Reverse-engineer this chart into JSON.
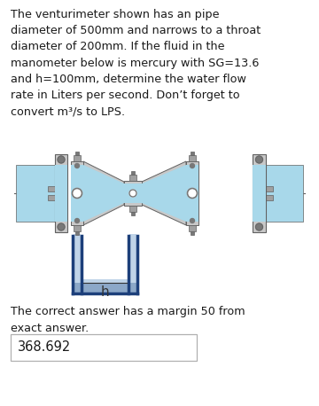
{
  "background_color": "#ffffff",
  "text_color": "#1a1a1a",
  "problem_text": "The venturimeter shown has an pipe\ndiameter of 500mm and narrows to a throat\ndiameter of 200mm. If the fluid in the\nmanometer below is mercury with SG=13.6\nand h=100mm, determine the water flow\nrate in Liters per second. Don’t forget to\nconvert m³/s to LPS.",
  "footer_text": "The correct answer has a margin 50 from\nexact answer.",
  "answer": "368.692",
  "h_label": "h",
  "pipe_fluid": "#a8d8ea",
  "metal_light": "#c8c8c8",
  "metal_mid": "#a0a0a0",
  "metal_dark": "#787878",
  "metal_edge": "#606060",
  "manometer_blue": "#1c3f7a",
  "manometer_fluid_light": "#c0d4e8",
  "manometer_fluid_dark": "#8ca8c8",
  "fig_width": 3.6,
  "fig_height": 4.58,
  "dpi": 100
}
